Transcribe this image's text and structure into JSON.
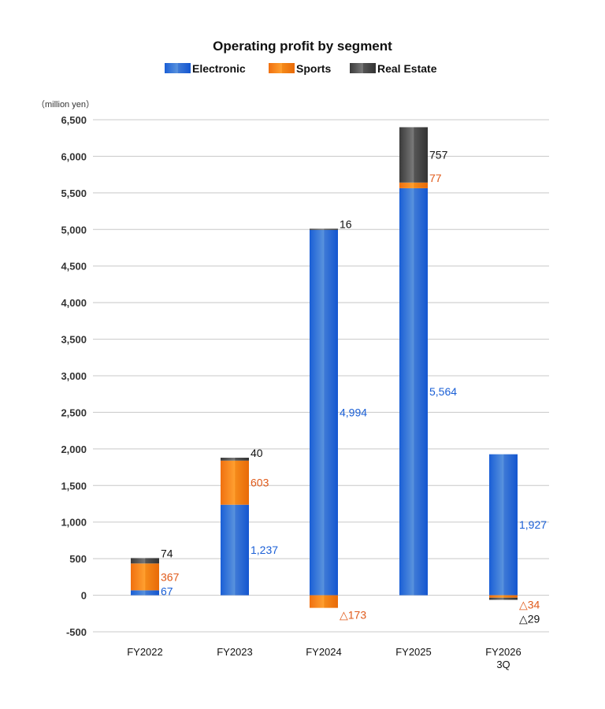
{
  "chart_data": {
    "type": "bar",
    "stacked": true,
    "title": "Operating profit by segment",
    "unit_label": "（million yen）",
    "ylim": [
      -500,
      6500
    ],
    "yticks": [
      -500,
      0,
      500,
      1000,
      1500,
      2000,
      2500,
      3000,
      3500,
      4000,
      4500,
      5000,
      5500,
      6000,
      6500
    ],
    "ytick_labels": [
      "-500",
      "0",
      "500",
      "1,000",
      "1,500",
      "2,000",
      "2,500",
      "3,000",
      "3,500",
      "4,000",
      "4,500",
      "5,000",
      "5,500",
      "6,000",
      "6,500"
    ],
    "grid": true,
    "legend_position": "top",
    "categories": [
      [
        "FY2022"
      ],
      [
        "FY2023"
      ],
      [
        "FY2024"
      ],
      [
        "FY2025"
      ],
      [
        "FY2026",
        "3Q"
      ]
    ],
    "series": [
      {
        "name": "Electronic",
        "color": "#1a5fd6",
        "label_color": "#1a5fd6",
        "values": [
          67,
          1237,
          4994,
          5564,
          1927
        ],
        "labels": [
          "67",
          "1,237",
          "4,994",
          "5,564",
          "1,927"
        ]
      },
      {
        "name": "Sports",
        "color": "#f07b10",
        "label_color": "#e05a1a",
        "values": [
          367,
          603,
          -173,
          77,
          -34
        ],
        "labels": [
          "367",
          "603",
          "△173",
          "77",
          "△34"
        ]
      },
      {
        "name": "Real Estate",
        "color": "#555555",
        "label_color": "#111111",
        "values": [
          74,
          40,
          16,
          757,
          -29
        ],
        "labels": [
          "74",
          "40",
          "16",
          "757",
          "△29"
        ]
      }
    ]
  }
}
